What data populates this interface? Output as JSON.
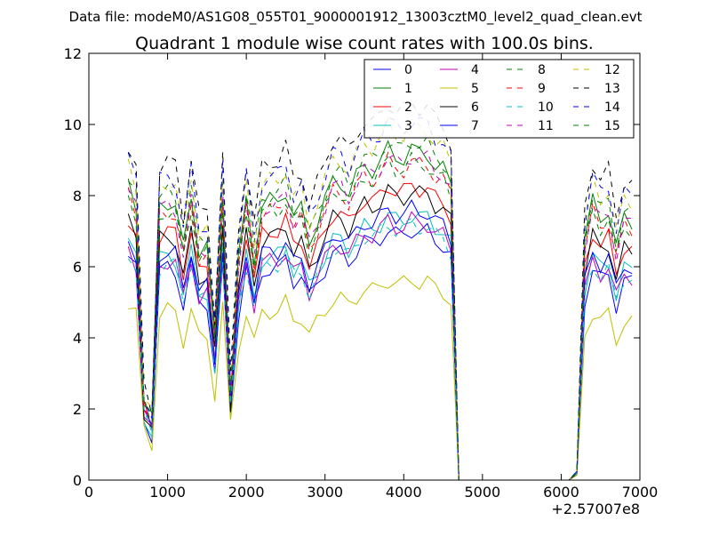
{
  "chart_data": {
    "type": "line",
    "suptitle": "Data file: modeM0/AS1G08_055T01_9000001912_13003cztM0_level2_quad_clean.evt",
    "title": "Quadrant 1 module wise count rates with 100.0s bins.",
    "xlabel": "",
    "ylabel": "",
    "xlim": [
      0,
      7000
    ],
    "ylim": [
      0,
      12
    ],
    "x_ticks": [
      "0",
      "1000",
      "2000",
      "3000",
      "4000",
      "5000",
      "6000",
      "7000"
    ],
    "y_ticks": [
      "0",
      "2",
      "4",
      "6",
      "8",
      "10",
      "12"
    ],
    "x_offset_label": "+2.57007e8",
    "grid": false,
    "legend_placement": "top-right",
    "legend_columns": 4,
    "x_start": 500,
    "x_step": 100,
    "profile": [
      7.4,
      6.9,
      2.0,
      1.5,
      6.9,
      7.0,
      6.9,
      5.8,
      7.1,
      5.8,
      5.9,
      3.6,
      7.2,
      2.2,
      5.5,
      7.0,
      5.6,
      6.9,
      7.0,
      7.0,
      7.3,
      6.6,
      6.8,
      6.0,
      6.5,
      7.0,
      7.5,
      7.5,
      7.2,
      7.6,
      7.9,
      7.8,
      8.0,
      8.3,
      8.1,
      8.1,
      8.3,
      8.2,
      8.2,
      7.9,
      7.8,
      7.4,
      0,
      0,
      0,
      0,
      0,
      0,
      0,
      0,
      0,
      0,
      0,
      0,
      0,
      0,
      0,
      0.2,
      6.0,
      7.0,
      6.6,
      6.8,
      5.8,
      6.6,
      6.5
    ],
    "series": [
      {
        "name": "0",
        "color": "#0000ff",
        "dashed": false,
        "scale": 0.85
      },
      {
        "name": "1",
        "color": "#008000",
        "dashed": false,
        "scale": 1.12
      },
      {
        "name": "2",
        "color": "#ff0000",
        "dashed": false,
        "scale": 1.0
      },
      {
        "name": "3",
        "color": "#00bfbf",
        "dashed": false,
        "scale": 0.9
      },
      {
        "name": "4",
        "color": "#bf00bf",
        "dashed": false,
        "scale": 0.88
      },
      {
        "name": "5",
        "color": "#bfbf00",
        "dashed": false,
        "scale": 0.68
      },
      {
        "name": "6",
        "color": "#000000",
        "dashed": false,
        "scale": 0.98
      },
      {
        "name": "7",
        "color": "#0000ff",
        "dashed": false,
        "scale": 0.92
      },
      {
        "name": "8",
        "color": "#008000",
        "dashed": true,
        "scale": 1.15
      },
      {
        "name": "9",
        "color": "#ff0000",
        "dashed": true,
        "scale": 1.08
      },
      {
        "name": "10",
        "color": "#00bfbf",
        "dashed": true,
        "scale": 0.87
      },
      {
        "name": "11",
        "color": "#bf00bf",
        "dashed": true,
        "scale": 1.1
      },
      {
        "name": "12",
        "color": "#bfbf00",
        "dashed": true,
        "scale": 1.2
      },
      {
        "name": "13",
        "color": "#000000",
        "dashed": true,
        "scale": 1.28
      },
      {
        "name": "14",
        "color": "#0000ff",
        "dashed": true,
        "scale": 1.22
      },
      {
        "name": "15",
        "color": "#008000",
        "dashed": true,
        "scale": 1.08
      }
    ]
  }
}
